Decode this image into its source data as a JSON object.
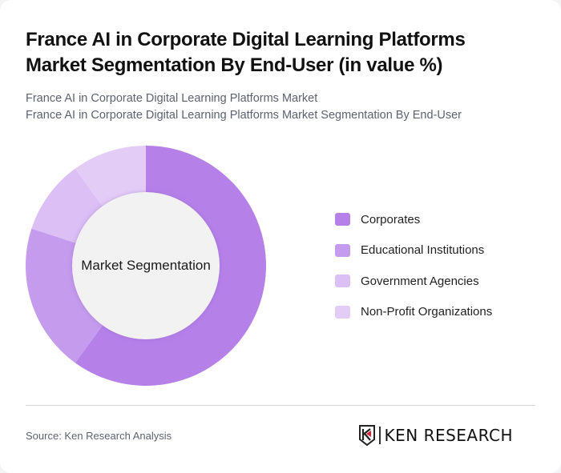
{
  "header": {
    "title_line1": "France AI in Corporate Digital Learning Platforms",
    "title_line2": "Market Segmentation By End-User (in value %)",
    "subtitle_line1": "France AI in Corporate Digital Learning Platforms Market",
    "subtitle_line2": "France AI in Corporate Digital Learning Platforms Market Segmentation By End-User"
  },
  "chart": {
    "center_label": "Market Segmentation"
  },
  "legend": {
    "items": [
      {
        "label": "Corporates",
        "color": "#b581e9"
      },
      {
        "label": "Educational Institutions",
        "color": "#c59bed"
      },
      {
        "label": "Government Agencies",
        "color": "#dbbff5"
      },
      {
        "label": "Non-Profit Organizations",
        "color": "#e3cdf7"
      }
    ]
  },
  "footer": {
    "source": "Source: Ken Research Analysis",
    "logo_text": "KEN RESEARCH"
  },
  "chart_data": {
    "type": "pie",
    "subtype": "donut",
    "title": "France AI in Corporate Digital Learning Platforms Market Segmentation By End-User (in value %)",
    "center_label": "Market Segmentation",
    "categories": [
      "Corporates",
      "Educational Institutions",
      "Government Agencies",
      "Non-Profit Organizations"
    ],
    "values": [
      60,
      20,
      10,
      10
    ],
    "unit": "%",
    "colors": [
      "#b581e9",
      "#c59bed",
      "#dbbff5",
      "#e3cdf7"
    ],
    "start_angle": "12 o'clock, clockwise",
    "legend_position": "right"
  }
}
